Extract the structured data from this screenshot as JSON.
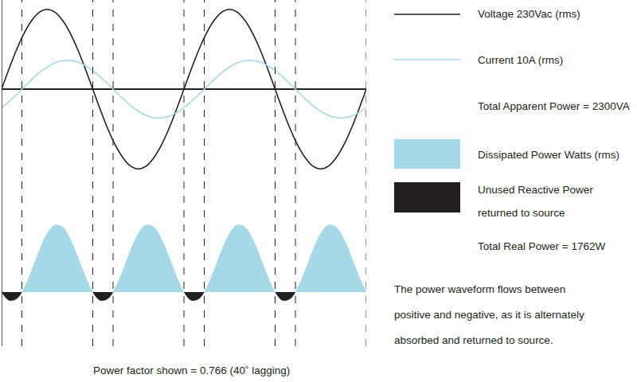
{
  "chart_data": [
    {
      "type": "line",
      "x": [
        0,
        15,
        30,
        45,
        60,
        75,
        90,
        105,
        120,
        135,
        150,
        165,
        180,
        195,
        210,
        225,
        240,
        255,
        270,
        285,
        300,
        315,
        330,
        345,
        360,
        375,
        390,
        405,
        420,
        435,
        450,
        465,
        480,
        495,
        510,
        525,
        540,
        555,
        570,
        585,
        600,
        615,
        630,
        645,
        660,
        675,
        690,
        705,
        720
      ],
      "xlim": [
        0,
        720
      ],
      "ylim": [
        -350,
        350
      ],
      "y2lim": [
        -42,
        42
      ],
      "tick_labels": false,
      "grid": false,
      "series": [
        {
          "name": "Voltage 230Vac (rms)",
          "color": "#231f20",
          "values": [
            0,
            84,
            163,
            230,
            281,
            314,
            325,
            314,
            281,
            230,
            163,
            84,
            0,
            -84,
            -163,
            -230,
            -281,
            -314,
            -325,
            -314,
            -281,
            -230,
            -163,
            -84,
            0,
            84,
            163,
            230,
            281,
            314,
            325,
            314,
            281,
            230,
            163,
            84,
            0,
            -84,
            -163,
            -230,
            -281,
            -314,
            -325,
            -314,
            -281,
            -230,
            -163,
            -84,
            0
          ]
        },
        {
          "name": "Current 10A (rms)",
          "color": "#a6d9e8",
          "axis": "y2",
          "values": [
            -9.1,
            -6.0,
            -2.5,
            1.2,
            4.8,
            8.1,
            10.8,
            12.8,
            13.9,
            14.0,
            13.3,
            11.5,
            9.1,
            6.0,
            2.5,
            -1.2,
            -4.8,
            -8.1,
            -10.8,
            -12.8,
            -13.9,
            -14.0,
            -13.3,
            -11.5,
            -9.1,
            -6.0,
            -2.5,
            1.2,
            4.8,
            8.1,
            10.8,
            12.8,
            13.9,
            14.0,
            13.3,
            11.5,
            9.1,
            6.0,
            2.5,
            -1.2,
            -4.8,
            -8.1,
            -10.8,
            -12.8,
            -13.9,
            -14.0,
            -13.3,
            -11.5,
            -9.1
          ]
        }
      ]
    },
    {
      "type": "area",
      "x": [
        0,
        15,
        30,
        45,
        60,
        75,
        90,
        105,
        120,
        135,
        150,
        165,
        180,
        195,
        210,
        225,
        240,
        255,
        270,
        285,
        300,
        315,
        330,
        345,
        360,
        375,
        390,
        405,
        420,
        435,
        450,
        465,
        480,
        495,
        510,
        525,
        540,
        555,
        570,
        585,
        600,
        615,
        630,
        645,
        660,
        675,
        690,
        705,
        720
      ],
      "xlim": [
        0,
        720
      ],
      "ylim": [
        -600,
        4400
      ],
      "tick_labels": false,
      "grid": false,
      "series": [
        {
          "values": [
            0,
            -504,
            -400,
            283,
            1362,
            2548,
            3524,
            4027,
            3924,
            3241,
            2162,
            975,
            0,
            -504,
            -400,
            283,
            1362,
            2548,
            3524,
            4027,
            3924,
            3241,
            2162,
            975,
            0,
            -504,
            -400,
            283,
            1362,
            2548,
            3524,
            4027,
            3924,
            3241,
            2162,
            975,
            0,
            -504,
            -400,
            283,
            1362,
            2548,
            3524,
            4027,
            3924,
            3241,
            2162,
            975,
            0
          ],
          "positive": {
            "name": "Dissipated Power Watts (rms)",
            "color": "#a6d9e8"
          },
          "negative": {
            "name": [
              "Unused Reactive Power",
              "returned to source"
            ],
            "color": "#231f20"
          }
        }
      ]
    }
  ],
  "texts": {
    "apparent_power": "Total Apparent Power = 2300VA",
    "real_power": "Total Real Power = 1762W",
    "note": [
      "The power waveform flows between",
      "positive and negative, as it is alternately",
      "absorbed and returned to source."
    ],
    "caption": "Power factor shown = 0.766 (40˚ lagging)"
  }
}
